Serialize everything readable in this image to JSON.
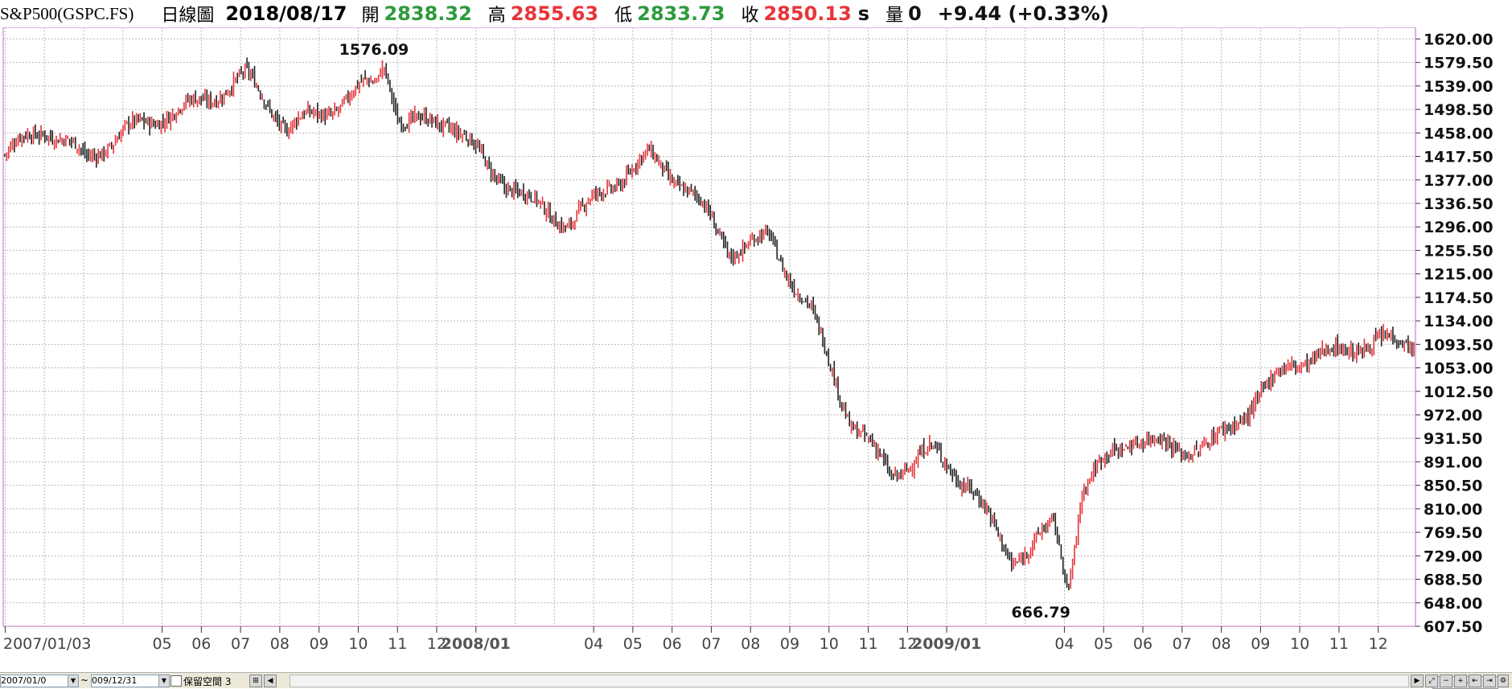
{
  "header": {
    "symbol": "S&P500(GSPC.FS)",
    "period": "日線圖",
    "date": "2018/08/17",
    "open_label": "開",
    "open_value": "2838.32",
    "high_label": "高",
    "high_value": "2855.63",
    "low_label": "低",
    "low_value": "2833.73",
    "close_label": "收",
    "close_value": "2850.13",
    "close_suffix": "s",
    "volume_label": "量",
    "volume_value": "0",
    "change": "+9.44 (+0.33%)"
  },
  "colors": {
    "up": "#e8343a",
    "down": "#222222",
    "grid": "#b9b9b9",
    "frame": "#c06bc0",
    "open": "#2e9a3e"
  },
  "chart_data": {
    "type": "line",
    "y_tick_labels": [
      "1620.00",
      "1579.50",
      "1539.00",
      "1498.50",
      "1458.00",
      "1417.50",
      "1377.00",
      "1336.50",
      "1296.00",
      "1255.50",
      "1215.00",
      "1174.50",
      "1134.00",
      "1093.50",
      "1053.00",
      "1012.50",
      "972.00",
      "931.50",
      "891.00",
      "850.50",
      "810.00",
      "769.50",
      "729.00",
      "688.50",
      "648.00",
      "607.50"
    ],
    "ylim": [
      607.5,
      1640
    ],
    "x_tick_labels": [
      {
        "label": "2007/01/03",
        "bold": false,
        "month": "2007-01"
      },
      {
        "label": "05",
        "bold": false,
        "month": "2007-05"
      },
      {
        "label": "06",
        "bold": false,
        "month": "2007-06"
      },
      {
        "label": "07",
        "bold": false,
        "month": "2007-07"
      },
      {
        "label": "08",
        "bold": false,
        "month": "2007-08"
      },
      {
        "label": "09",
        "bold": false,
        "month": "2007-09"
      },
      {
        "label": "10",
        "bold": false,
        "month": "2007-10"
      },
      {
        "label": "11",
        "bold": false,
        "month": "2007-11"
      },
      {
        "label": "12",
        "bold": false,
        "month": "2007-12"
      },
      {
        "label": "2008/01",
        "bold": true,
        "month": "2008-01"
      },
      {
        "label": "04",
        "bold": false,
        "month": "2008-04"
      },
      {
        "label": "05",
        "bold": false,
        "month": "2008-05"
      },
      {
        "label": "06",
        "bold": false,
        "month": "2008-06"
      },
      {
        "label": "07",
        "bold": false,
        "month": "2008-07"
      },
      {
        "label": "08",
        "bold": false,
        "month": "2008-08"
      },
      {
        "label": "09",
        "bold": false,
        "month": "2008-09"
      },
      {
        "label": "10",
        "bold": false,
        "month": "2008-10"
      },
      {
        "label": "11",
        "bold": false,
        "month": "2008-11"
      },
      {
        "label": "12",
        "bold": false,
        "month": "2008-12"
      },
      {
        "label": "2009/01",
        "bold": true,
        "month": "2009-01"
      },
      {
        "label": "04",
        "bold": false,
        "month": "2009-04"
      },
      {
        "label": "05",
        "bold": false,
        "month": "2009-05"
      },
      {
        "label": "06",
        "bold": false,
        "month": "2009-06"
      },
      {
        "label": "07",
        "bold": false,
        "month": "2009-07"
      },
      {
        "label": "08",
        "bold": false,
        "month": "2009-08"
      },
      {
        "label": "09",
        "bold": false,
        "month": "2009-09"
      },
      {
        "label": "10",
        "bold": false,
        "month": "2009-10"
      },
      {
        "label": "11",
        "bold": false,
        "month": "2009-11"
      },
      {
        "label": "12",
        "bold": false,
        "month": "2009-12"
      }
    ],
    "extra_grid_months": [
      "2007-02",
      "2007-03",
      "2007-04",
      "2008-02",
      "2008-03",
      "2009-02",
      "2009-03"
    ],
    "x": [
      "2007-01",
      "2007-02",
      "2007-03",
      "2007-04",
      "2007-05",
      "2007-06",
      "2007-07",
      "2007-08",
      "2007-09",
      "2007-10",
      "2007-11",
      "2007-12",
      "2008-01",
      "2008-02",
      "2008-03",
      "2008-04",
      "2008-05",
      "2008-06",
      "2008-07",
      "2008-08",
      "2008-09",
      "2008-10",
      "2008-11",
      "2008-12",
      "2009-01",
      "2009-02",
      "2009-03",
      "2009-04",
      "2009-05",
      "2009-06",
      "2009-07",
      "2009-08",
      "2009-09",
      "2009-10",
      "2009-11",
      "2009-12"
    ],
    "series": [
      {
        "values": [
          1420,
          1450,
          1400,
          1470,
          1510,
          1520,
          1540,
          1450,
          1500,
          1560,
          1480,
          1470,
          1380,
          1340,
          1320,
          1380,
          1410,
          1340,
          1250,
          1290,
          1170,
          960,
          850,
          900,
          860,
          740,
          780,
          850,
          920,
          920,
          940,
          1000,
          1050,
          1060,
          1100,
          1115
        ]
      }
    ],
    "annotations": [
      {
        "label": "1576.09",
        "date": "2007-10",
        "value": 1576.09,
        "position": "above"
      },
      {
        "label": "666.79",
        "date": "2009-03",
        "value": 666.79,
        "position": "below"
      }
    ]
  },
  "bottombar": {
    "start_date": "2007/01/0",
    "tilde": "~",
    "end_date": "009/12/31",
    "keep_label": "保留空間",
    "keep_value": "3",
    "scroll_value": "758"
  }
}
